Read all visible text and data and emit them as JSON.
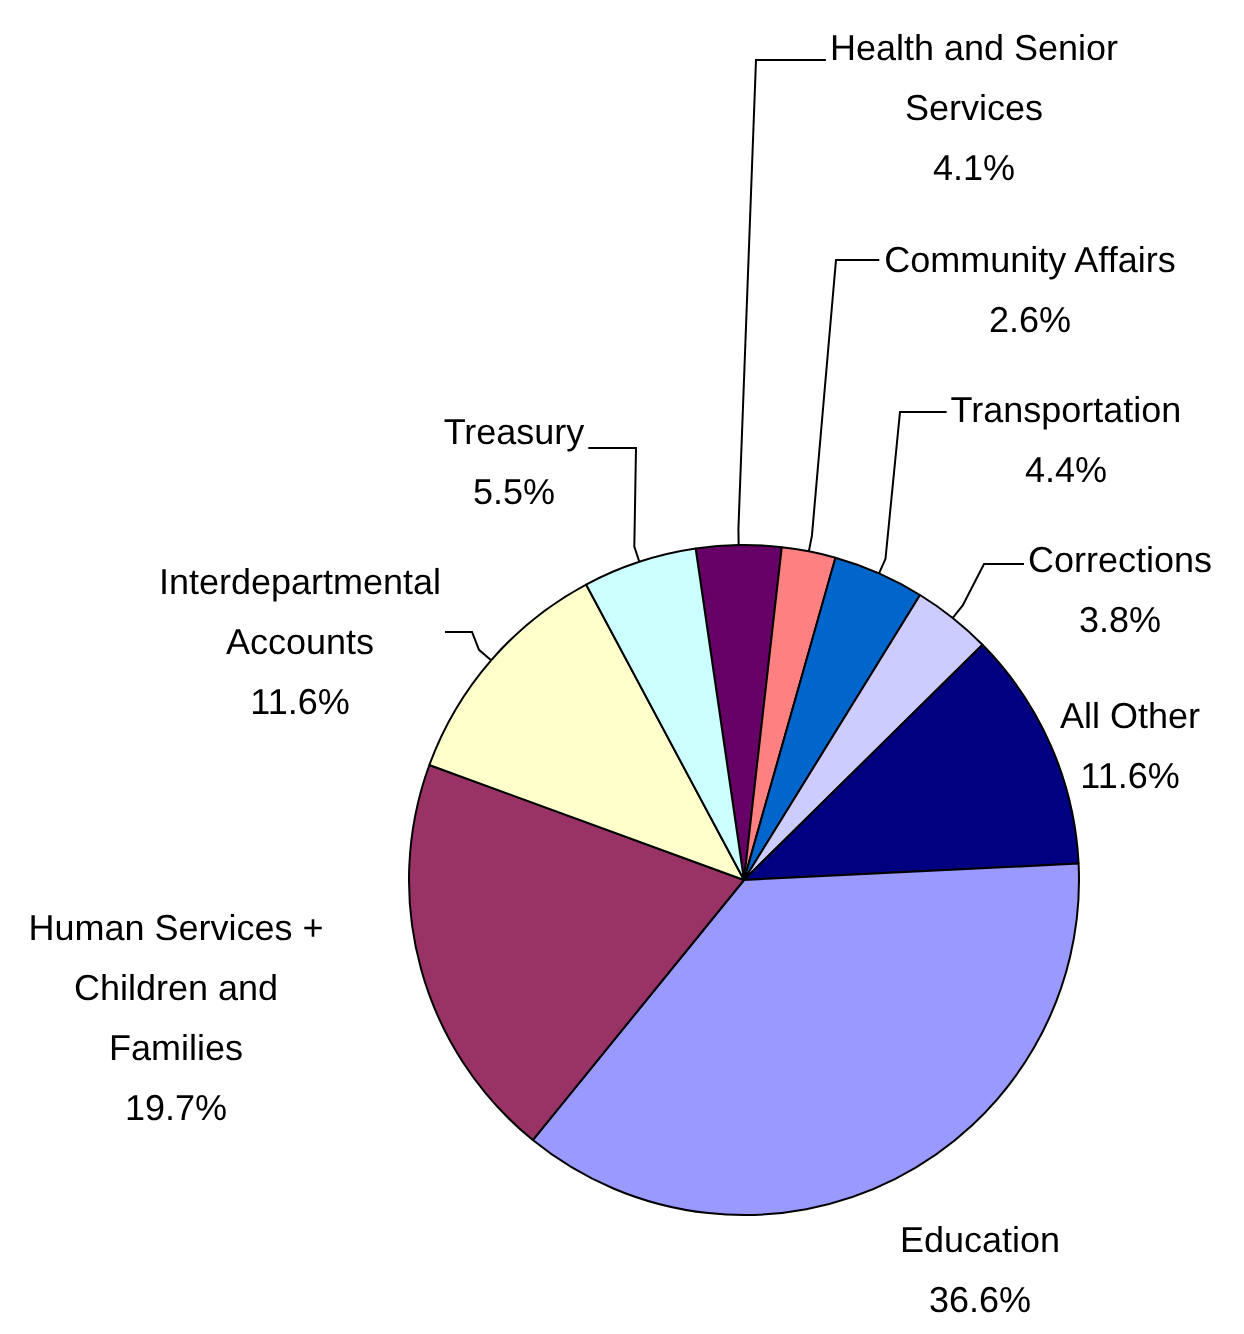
{
  "chart_data": {
    "type": "pie",
    "categories": [
      "Health and Senior Services",
      "Community Affairs",
      "Transportation",
      "Corrections",
      "All Other",
      "Education",
      "Human Services + Children and Families",
      "Interdepartmental Accounts",
      "Treasury"
    ],
    "values": [
      4.1,
      2.6,
      4.4,
      3.8,
      11.6,
      36.6,
      19.7,
      11.6,
      5.5
    ],
    "value_labels": [
      "4.1%",
      "2.6%",
      "4.4%",
      "3.8%",
      "11.6%",
      "36.6%",
      "19.7%",
      "11.6%",
      "5.5%"
    ],
    "colors": [
      "#660066",
      "#ff8080",
      "#0066cc",
      "#ccccff",
      "#000080",
      "#9999ff",
      "#993366",
      "#ffffcc",
      "#ccffff"
    ],
    "legend": false
  }
}
